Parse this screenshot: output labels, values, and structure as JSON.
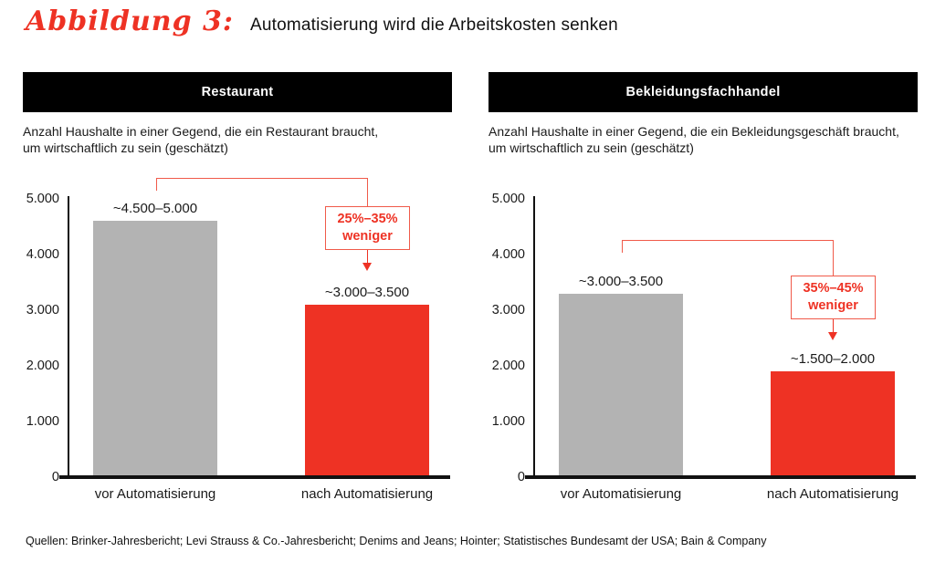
{
  "title": {
    "label": "Abbildung 3:",
    "text": "Automatisierung wird die Arbeitskosten senken"
  },
  "colors": {
    "red": "#ee3224",
    "red_line": "#f05a4a",
    "gray": "#b3b3b3",
    "black": "#000000"
  },
  "footer": "Quellen: Brinker-Jahresbericht; Levi Strauss & Co.-Jahresbericht; Denims and Jeans; Hointer; Statistisches Bundesamt der USA; Bain & Company",
  "chart_data": [
    {
      "type": "bar",
      "title": "Restaurant",
      "subtitle_lines": [
        "Anzahl Haushalte in einer Gegend, die ein Restaurant braucht,",
        "um wirtschaftlich zu sein (geschätzt)"
      ],
      "categories": [
        "vor Automatisierung",
        "nach Automatisierung"
      ],
      "values": [
        4600,
        3100
      ],
      "value_labels": [
        "~4.500–5.000",
        "~3.000–3.500"
      ],
      "bar_colors": [
        "#b3b3b3",
        "#ee3224"
      ],
      "annotation_lines": [
        "25%–35%",
        "weniger"
      ],
      "ylim": [
        0,
        5000
      ],
      "ytick_values": [
        0,
        1000,
        2000,
        3000,
        4000,
        5000
      ],
      "ytick_labels": [
        "0",
        "1.000",
        "2.000",
        "3.000",
        "4.000",
        "5.000"
      ],
      "grid": "off",
      "legend": "none"
    },
    {
      "type": "bar",
      "title": "Bekleidungsfachhandel",
      "subtitle_lines": [
        "Anzahl Haushalte in einer Gegend, die ein Bekleidungsgeschäft braucht,",
        "um wirtschaftlich zu sein (geschätzt)"
      ],
      "categories": [
        "vor Automatisierung",
        "nach Automatisierung"
      ],
      "values": [
        3300,
        1900
      ],
      "value_labels": [
        "~3.000–3.500",
        "~1.500–2.000"
      ],
      "bar_colors": [
        "#b3b3b3",
        "#ee3224"
      ],
      "annotation_lines": [
        "35%–45%",
        "weniger"
      ],
      "ylim": [
        0,
        5000
      ],
      "ytick_values": [
        0,
        1000,
        2000,
        3000,
        4000,
        5000
      ],
      "ytick_labels": [
        "0",
        "1.000",
        "2.000",
        "3.000",
        "4.000",
        "5.000"
      ],
      "grid": "off",
      "legend": "none"
    }
  ]
}
